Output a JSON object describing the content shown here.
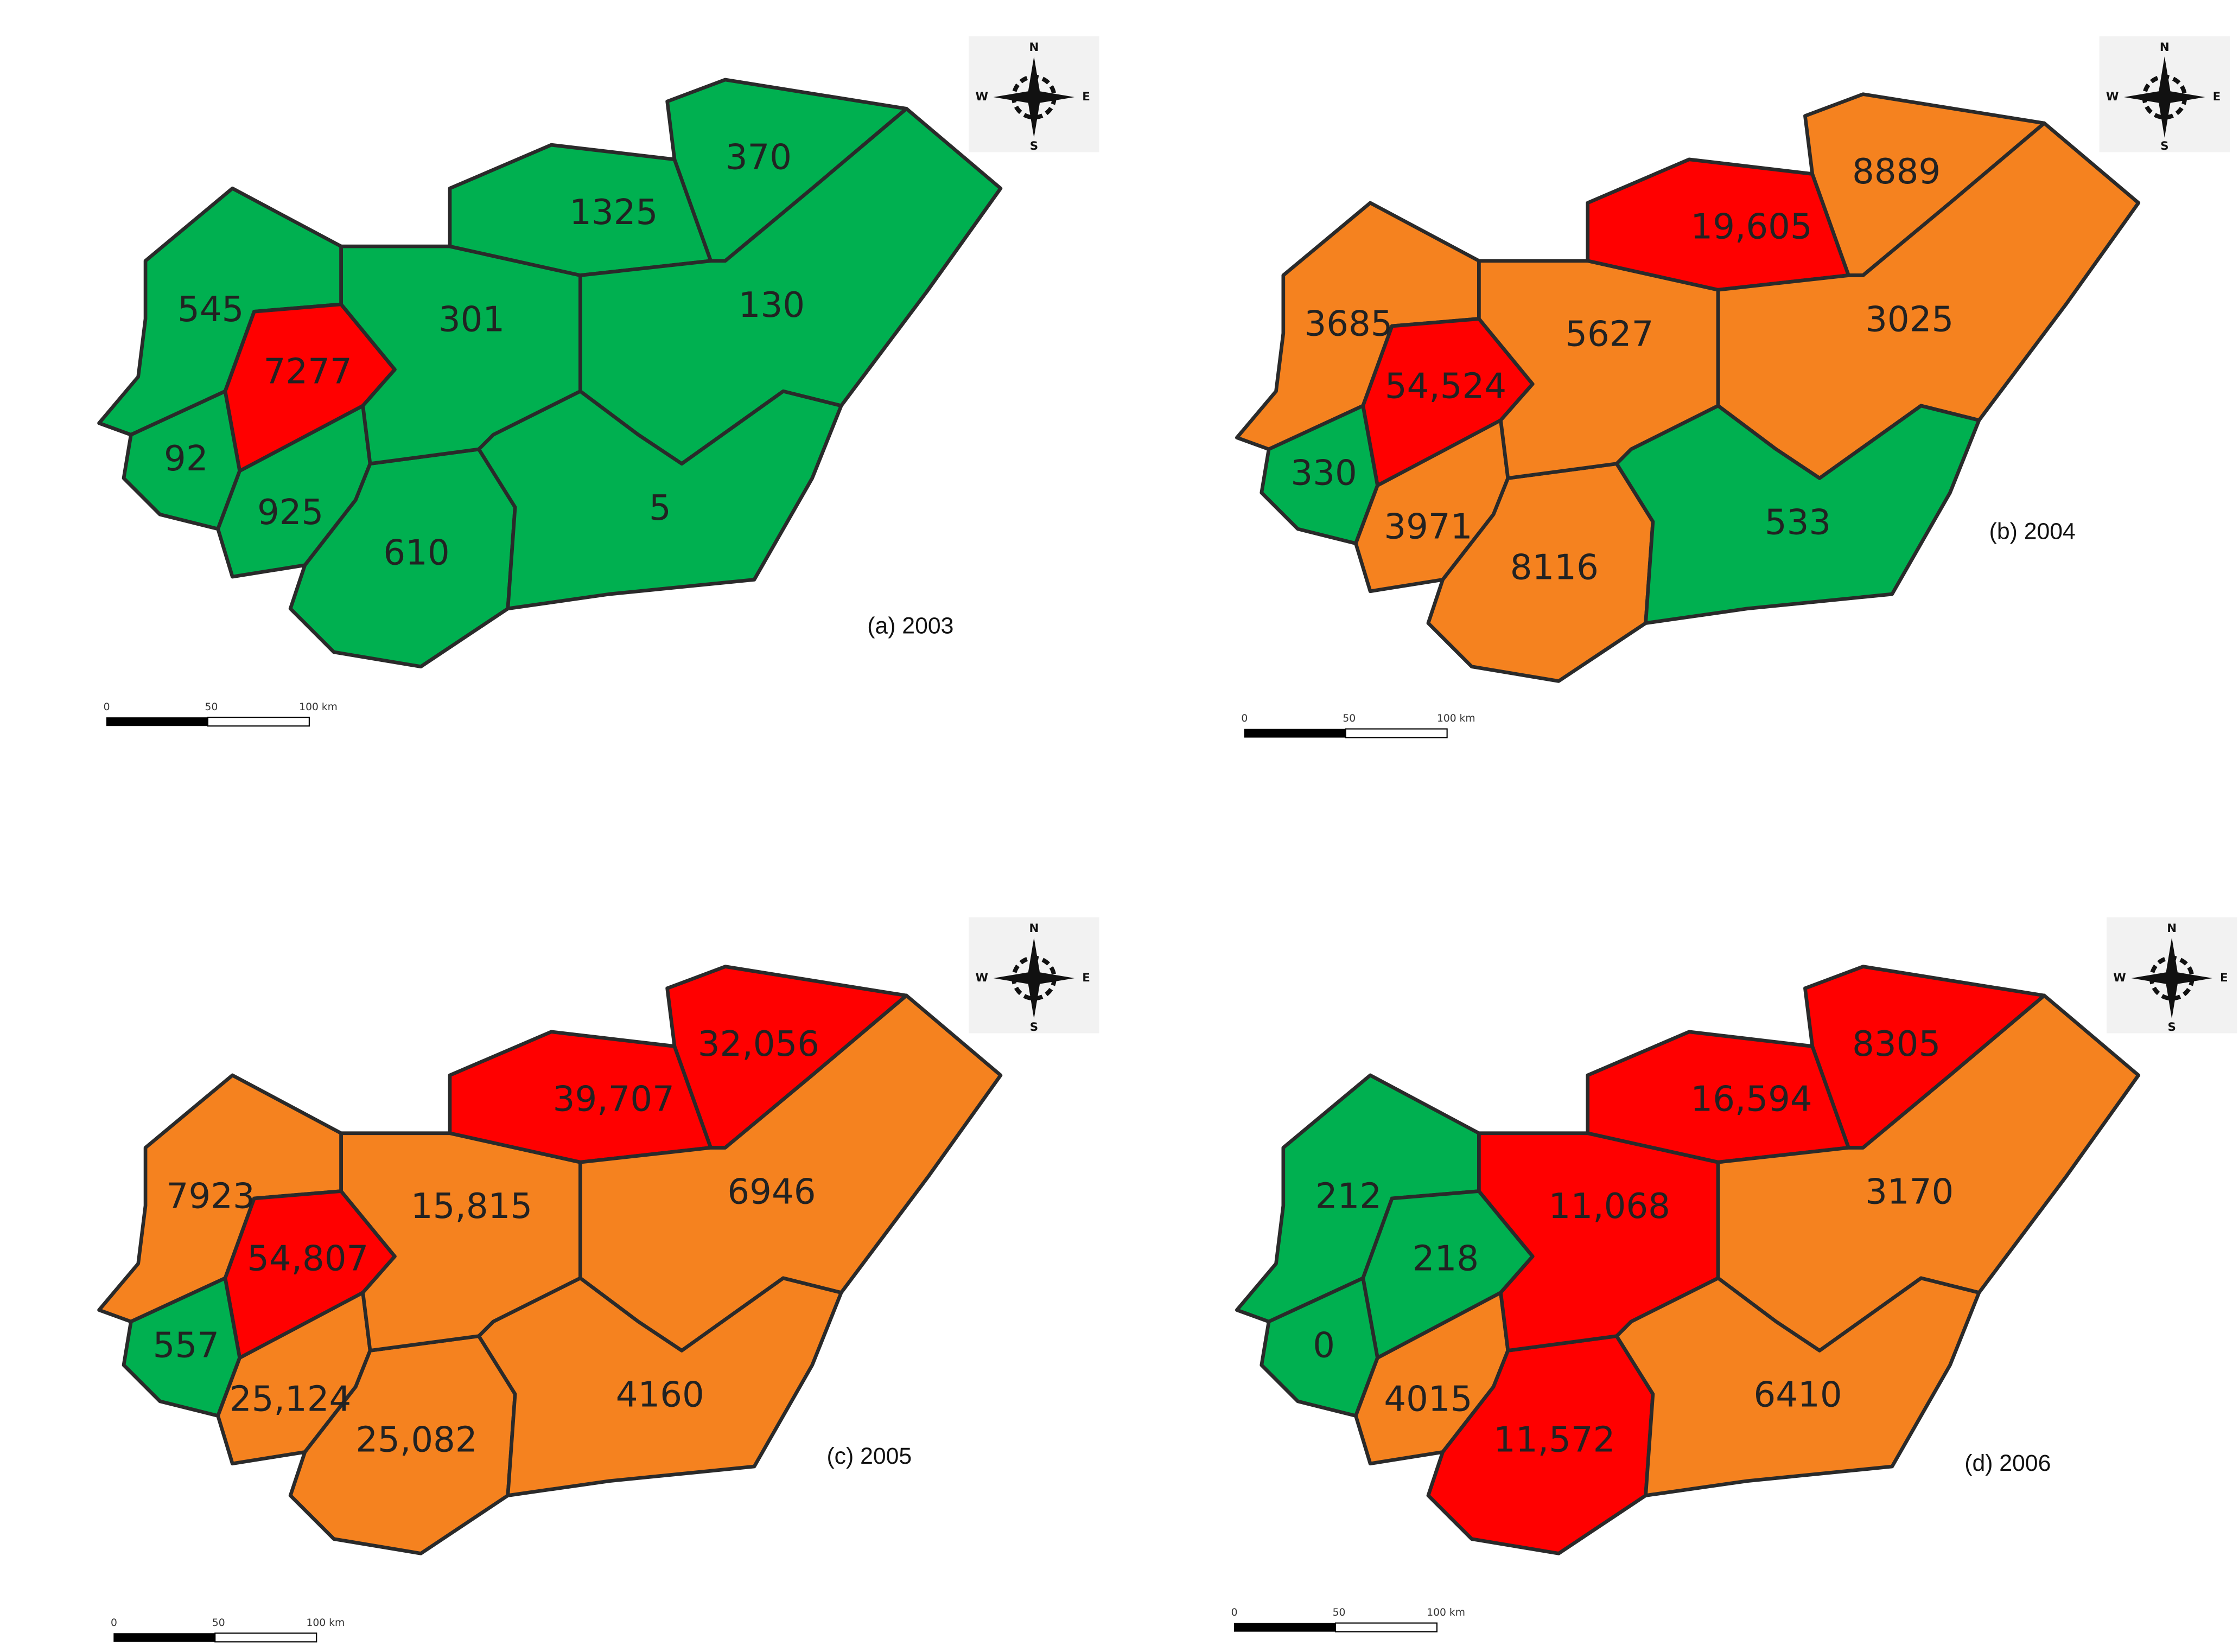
{
  "maps": [
    {
      "caption": "(a) 2003",
      "scale": [
        "0",
        "50",
        "100 km"
      ],
      "compass": [
        "N",
        "E",
        "S",
        "W"
      ],
      "regions": [
        {
          "label": "545",
          "color": "#00b050"
        },
        {
          "label": "7277",
          "color": "#ff0000"
        },
        {
          "label": "92",
          "color": "#00b050"
        },
        {
          "label": "925",
          "color": "#00b050"
        },
        {
          "label": "610",
          "color": "#00b050"
        },
        {
          "label": "301",
          "color": "#00b050"
        },
        {
          "label": "1325",
          "color": "#00b050"
        },
        {
          "label": "370",
          "color": "#00b050"
        },
        {
          "label": "130",
          "color": "#00b050"
        },
        {
          "label": "5",
          "color": "#00b050"
        }
      ]
    },
    {
      "caption": "(b) 2004",
      "scale": [
        "0",
        "50",
        "100 km"
      ],
      "compass": [
        "N",
        "E",
        "S",
        "W"
      ],
      "regions": [
        {
          "label": "3685",
          "color": "#f5821f"
        },
        {
          "label": "54,524",
          "color": "#ff0000"
        },
        {
          "label": "330",
          "color": "#00b050"
        },
        {
          "label": "3971",
          "color": "#f5821f"
        },
        {
          "label": "8116",
          "color": "#f5821f"
        },
        {
          "label": "5627",
          "color": "#f5821f"
        },
        {
          "label": "19,605",
          "color": "#ff0000"
        },
        {
          "label": "8889",
          "color": "#f5821f"
        },
        {
          "label": "3025",
          "color": "#f5821f"
        },
        {
          "label": "533",
          "color": "#00b050"
        }
      ]
    },
    {
      "caption": "(c) 2005",
      "scale": [
        "0",
        "50",
        "100 km"
      ],
      "compass": [
        "N",
        "E",
        "S",
        "W"
      ],
      "regions": [
        {
          "label": "7923",
          "color": "#f5821f"
        },
        {
          "label": "54,807",
          "color": "#ff0000"
        },
        {
          "label": "557",
          "color": "#00b050"
        },
        {
          "label": "25,124",
          "color": "#f5821f"
        },
        {
          "label": "25,082",
          "color": "#f5821f"
        },
        {
          "label": "15,815",
          "color": "#f5821f"
        },
        {
          "label": "39,707",
          "color": "#ff0000"
        },
        {
          "label": "32,056",
          "color": "#ff0000"
        },
        {
          "label": "6946",
          "color": "#f5821f"
        },
        {
          "label": "4160",
          "color": "#f5821f"
        }
      ]
    },
    {
      "caption": "(d) 2006",
      "scale": [
        "0",
        "50",
        "100 km"
      ],
      "compass": [
        "N",
        "E",
        "S",
        "W"
      ],
      "regions": [
        {
          "label": "212",
          "color": "#00b050"
        },
        {
          "label": "218",
          "color": "#00b050"
        },
        {
          "label": "0",
          "color": "#00b050"
        },
        {
          "label": "4015",
          "color": "#f5821f"
        },
        {
          "label": "11,572",
          "color": "#ff0000"
        },
        {
          "label": "11,068",
          "color": "#ff0000"
        },
        {
          "label": "16,594",
          "color": "#ff0000"
        },
        {
          "label": "8305",
          "color": "#ff0000"
        },
        {
          "label": "3170",
          "color": "#f5821f"
        },
        {
          "label": "6410",
          "color": "#f5821f"
        }
      ]
    }
  ]
}
